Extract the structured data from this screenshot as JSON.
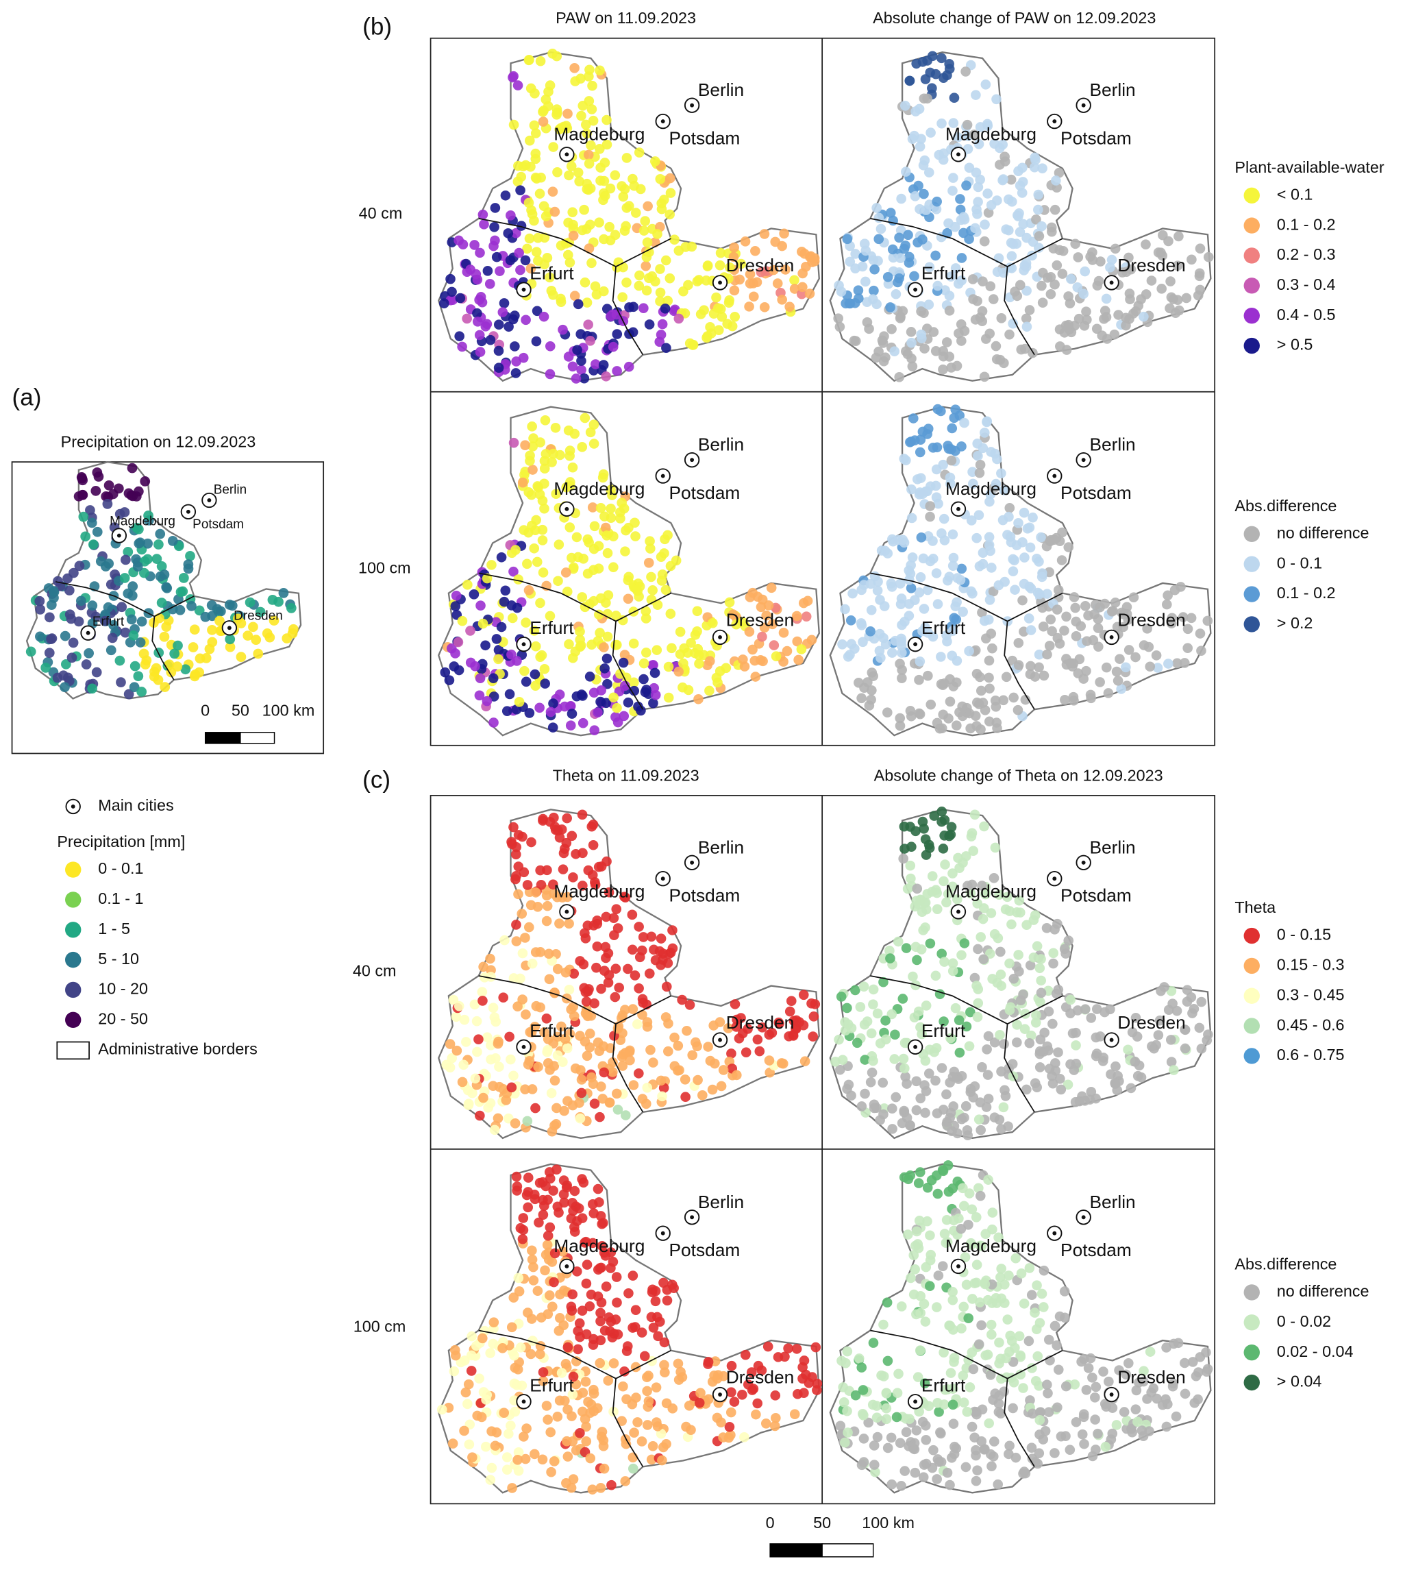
{
  "panel_labels": [
    "(a)",
    "(b)",
    "(c)"
  ],
  "cities": [
    "Berlin",
    "Potsdam",
    "Magdeburg",
    "Erfurt",
    "Dresden"
  ],
  "precipitation_map": {
    "title": "Precipitation on 12.09.2023",
    "scale_bar": [
      "0",
      "50",
      "100 km"
    ]
  },
  "legend_a": {
    "main_cities": "Main cities",
    "title": "Precipitation [mm]",
    "entries": [
      {
        "label": "0 - 0.1",
        "color": "#fde725"
      },
      {
        "label": "0.1 - 1",
        "color": "#7ad151"
      },
      {
        "label": "1 - 5",
        "color": "#22a884"
      },
      {
        "label": "5 - 10",
        "color": "#2a788e"
      },
      {
        "label": "10 - 20",
        "color": "#414487"
      },
      {
        "label": "20 - 50",
        "color": "#440154"
      }
    ],
    "borders": "Administrative borders"
  },
  "paw": {
    "titles": [
      "PAW on 11.09.2023",
      "Absolute change of PAW on 12.09.2023"
    ],
    "rows": [
      "40 cm",
      "100 cm"
    ]
  },
  "paw_legend": {
    "title": "Plant-available-water",
    "entries": [
      {
        "label": "< 0.1",
        "color": "#f5f53a"
      },
      {
        "label": "0.1 - 0.2",
        "color": "#fdae61"
      },
      {
        "label": "0.2 - 0.3",
        "color": "#f08080"
      },
      {
        "label": "0.3 - 0.4",
        "color": "#c85ab4"
      },
      {
        "label": "0.4 - 0.5",
        "color": "#9b30d0"
      },
      {
        "label": "> 0.5",
        "color": "#1a1a8c"
      }
    ]
  },
  "paw_diff_legend": {
    "title": "Abs.difference",
    "entries": [
      {
        "label": "no difference",
        "color": "#b3b3b3"
      },
      {
        "label": "0 - 0.1",
        "color": "#bdd7ee"
      },
      {
        "label": "0.1 - 0.2",
        "color": "#5b9bd5"
      },
      {
        "label": "> 0.2",
        "color": "#2f5597"
      }
    ]
  },
  "theta": {
    "titles": [
      "Theta on 11.09.2023",
      "Absolute change of Theta on 12.09.2023"
    ],
    "rows": [
      "40 cm",
      "100 cm"
    ]
  },
  "theta_legend": {
    "title": "Theta",
    "entries": [
      {
        "label": "0 - 0.15",
        "color": "#e03030"
      },
      {
        "label": "0.15 - 0.3",
        "color": "#fdae61"
      },
      {
        "label": "0.3 - 0.45",
        "color": "#ffffbf"
      },
      {
        "label": "0.45 - 0.6",
        "color": "#b2dfb2"
      },
      {
        "label": "0.6 - 0.75",
        "color": "#4e9ad4"
      }
    ]
  },
  "theta_diff_legend": {
    "title": "Abs.difference",
    "entries": [
      {
        "label": "no difference",
        "color": "#b3b3b3"
      },
      {
        "label": "0 - 0.02",
        "color": "#c7e9c0"
      },
      {
        "label": "0.02 - 0.04",
        "color": "#5cb870"
      },
      {
        "label": "> 0.04",
        "color": "#2e6b45"
      }
    ]
  },
  "scale_bar": [
    "0",
    "50",
    "100 km"
  ]
}
